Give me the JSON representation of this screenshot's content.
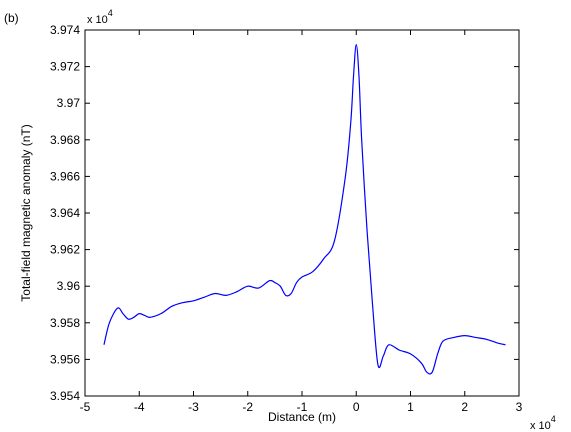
{
  "panel_label": "(b)",
  "chart_data": {
    "type": "line",
    "title": "",
    "xlabel": "Distance (m)",
    "ylabel": "Total-field magnetic anomaly (nT)",
    "x_exponent_label": "x 10",
    "x_exponent_power": "4",
    "y_exponent_label": "x 10",
    "y_exponent_power": "4",
    "xlim": [
      -5,
      3
    ],
    "ylim": [
      3.954,
      3.974
    ],
    "x_ticks": [
      -5,
      -4,
      -3,
      -2,
      -1,
      0,
      1,
      2,
      3
    ],
    "x_tick_labels": [
      "-5",
      "-4",
      "-3",
      "-2",
      "-1",
      "0",
      "1",
      "2",
      "3"
    ],
    "y_ticks": [
      3.954,
      3.956,
      3.958,
      3.96,
      3.962,
      3.964,
      3.966,
      3.968,
      3.97,
      3.972,
      3.974
    ],
    "y_tick_labels": [
      "3.954",
      "3.956",
      "3.958",
      "3.96",
      "3.962",
      "3.964",
      "3.966",
      "3.968",
      "3.97",
      "3.972",
      "3.974"
    ],
    "grid": false,
    "legend": false,
    "line_color": "#0000ff",
    "series": [
      {
        "name": "",
        "x": [
          -4.65,
          -4.55,
          -4.4,
          -4.3,
          -4.2,
          -4.1,
          -4.0,
          -3.9,
          -3.8,
          -3.6,
          -3.4,
          -3.2,
          -3.0,
          -2.8,
          -2.6,
          -2.4,
          -2.2,
          -2.0,
          -1.8,
          -1.6,
          -1.5,
          -1.4,
          -1.3,
          -1.2,
          -1.1,
          -1.0,
          -0.8,
          -0.6,
          -0.4,
          -0.2,
          -0.1,
          -0.05,
          0.0,
          0.05,
          0.1,
          0.2,
          0.3,
          0.4,
          0.5,
          0.6,
          0.8,
          1.0,
          1.2,
          1.3,
          1.4,
          1.5,
          1.6,
          1.8,
          2.0,
          2.2,
          2.4,
          2.6,
          2.75
        ],
        "y": [
          3.9568,
          3.958,
          3.9588,
          3.9585,
          3.9582,
          3.9583,
          3.9585,
          3.9584,
          3.9583,
          3.9585,
          3.9589,
          3.9591,
          3.9592,
          3.9594,
          3.9596,
          3.9595,
          3.9597,
          3.96,
          3.9599,
          3.9603,
          3.9602,
          3.96,
          3.9595,
          3.9596,
          3.9602,
          3.9605,
          3.9608,
          3.9615,
          3.9625,
          3.966,
          3.969,
          3.9715,
          3.9732,
          3.9715,
          3.968,
          3.963,
          3.959,
          3.9557,
          3.9562,
          3.9568,
          3.9565,
          3.9563,
          3.9558,
          3.9553,
          3.9553,
          3.9563,
          3.957,
          3.9572,
          3.9573,
          3.9572,
          3.9571,
          3.9569,
          3.9568
        ]
      }
    ]
  }
}
